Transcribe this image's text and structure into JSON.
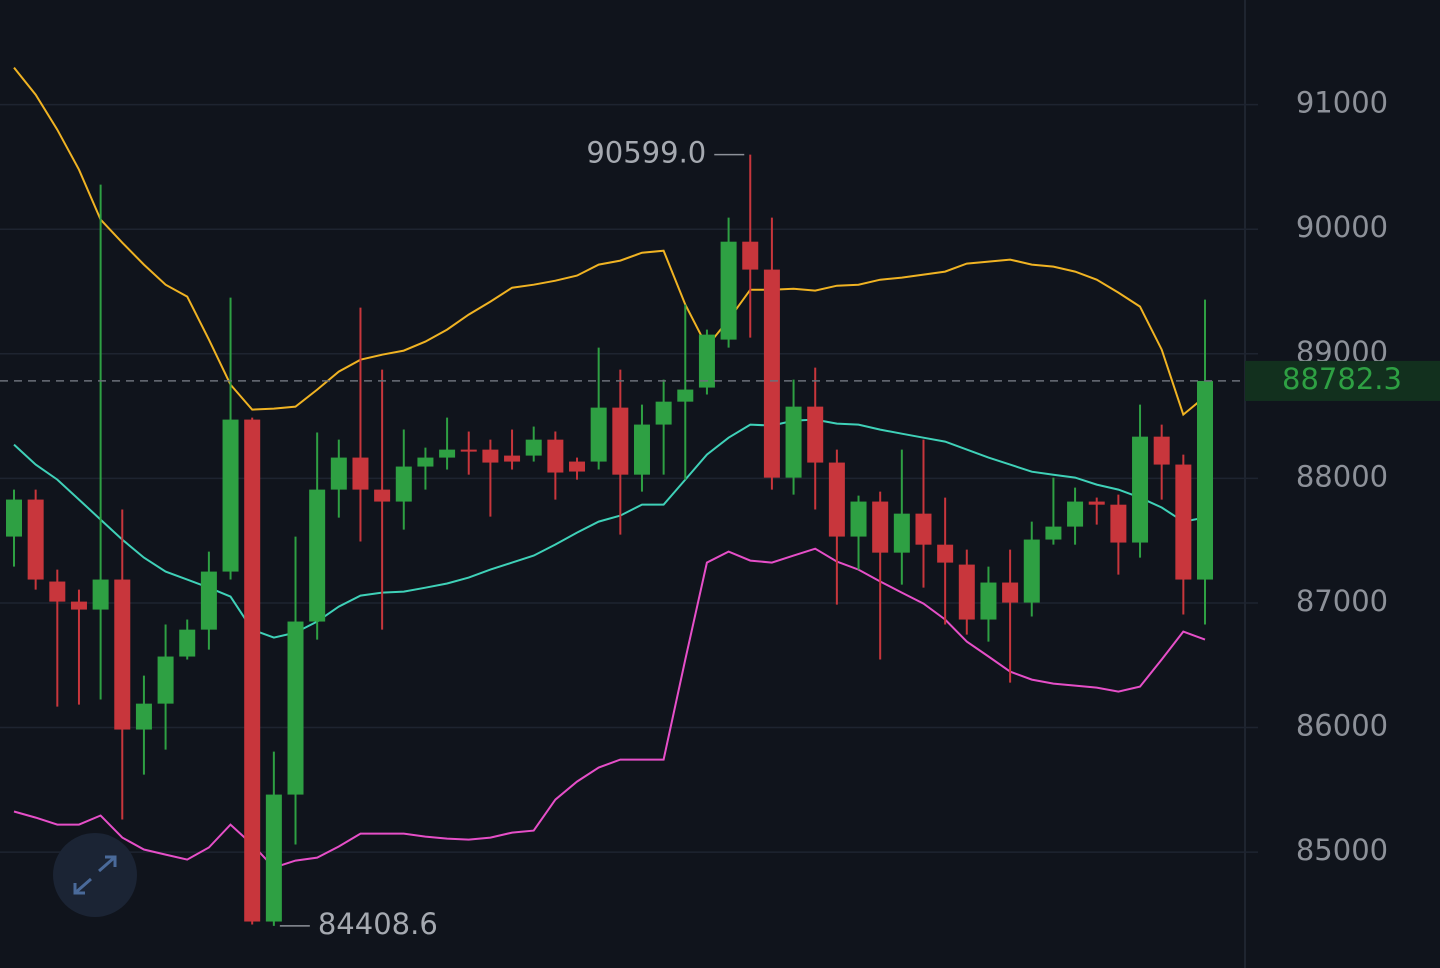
{
  "chart_data": {
    "type": "candlestick",
    "up_color": "#2ea043",
    "down_color": "#c8363c",
    "ylim": [
      84070,
      91840
    ],
    "yticks": [
      85000,
      86000,
      87000,
      88000,
      89000,
      90000,
      91000
    ],
    "grid": true,
    "open": [
      87533,
      87830,
      87172,
      87011,
      86947,
      87188,
      85984,
      86192,
      86570,
      86786,
      87252,
      88472,
      84443,
      85462,
      86851,
      87910,
      88167,
      87910,
      87814,
      88095,
      88167,
      88231,
      88231,
      88183,
      88183,
      88311,
      88135,
      88135,
      88568,
      88030,
      88432,
      88616,
      88729,
      89114,
      89900,
      89676,
      88006,
      88576,
      88127,
      87533,
      87814,
      87404,
      87717,
      87468,
      87308,
      86867,
      87164,
      87003,
      87509,
      87613,
      87814,
      87789,
      87485,
      88335,
      88111,
      87188
    ],
    "high": [
      87910,
      87910,
      87268,
      87107,
      90358,
      87750,
      86417,
      86827,
      86867,
      87412,
      89451,
      88488,
      85807,
      87533,
      88368,
      88311,
      89371,
      88873,
      88392,
      88247,
      88488,
      88376,
      88311,
      88392,
      88416,
      88376,
      88167,
      89050,
      88873,
      88592,
      88793,
      89395,
      89194,
      90093,
      90599,
      90093,
      88793,
      88889,
      88231,
      87862,
      87894,
      88231,
      88311,
      87846,
      87428,
      87292,
      87428,
      87653,
      88006,
      87926,
      87846,
      87870,
      88592,
      88432,
      88191,
      89435
    ],
    "low": [
      87292,
      87107,
      86168,
      86184,
      86225,
      85262,
      85622,
      85823,
      86546,
      86626,
      87188,
      84419,
      84408.6,
      85061,
      86706,
      87685,
      87493,
      86786,
      87589,
      87910,
      88071,
      88030,
      87693,
      88071,
      88135,
      87830,
      87990,
      88071,
      87549,
      87894,
      88030,
      87990,
      88673,
      89050,
      89130,
      87910,
      87870,
      87750,
      86987,
      87268,
      86546,
      87147,
      87123,
      86827,
      86746,
      86690,
      86361,
      86891,
      87468,
      87468,
      87629,
      87228,
      87364,
      87830,
      86907,
      86827
    ],
    "close": [
      87830,
      87188,
      87011,
      86947,
      87188,
      85984,
      86192,
      86570,
      86786,
      87252,
      88472,
      84443,
      85462,
      86851,
      87910,
      88167,
      87910,
      87814,
      88095,
      88167,
      88231,
      88215,
      88127,
      88135,
      88311,
      88047,
      88055,
      88568,
      88030,
      88432,
      88616,
      88713,
      89154,
      89900,
      89676,
      88006,
      88576,
      88127,
      87533,
      87814,
      87404,
      87717,
      87468,
      87324,
      86867,
      87164,
      87003,
      87509,
      87613,
      87814,
      87789,
      87485,
      88335,
      88111,
      87188,
      88782.3
    ],
    "lines": [
      {
        "color": "#f0b323",
        "values": [
          91297,
          91080,
          90799,
          90478,
          90077,
          89892,
          89716,
          89555,
          89459,
          89114,
          88753,
          88552,
          88560,
          88576,
          88713,
          88857,
          88953,
          88993,
          89026,
          89098,
          89194,
          89315,
          89419,
          89531,
          89555,
          89587,
          89628,
          89716,
          89748,
          89812,
          89828,
          89395,
          89058,
          89274,
          89515,
          89515,
          89523,
          89507,
          89547,
          89555,
          89595,
          89612,
          89636,
          89660,
          89724,
          89740,
          89756,
          89716,
          89700,
          89660,
          89595,
          89491,
          89379,
          89034,
          88512,
          88656
        ]
      },
      {
        "color": "#3fd1b8",
        "values": [
          88271,
          88111,
          87990,
          87830,
          87669,
          87509,
          87364,
          87252,
          87188,
          87123,
          87051,
          86786,
          86722,
          86762,
          86851,
          86971,
          87059,
          87083,
          87091,
          87123,
          87156,
          87204,
          87268,
          87324,
          87380,
          87469,
          87565,
          87653,
          87701,
          87790,
          87790,
          87990,
          88191,
          88327,
          88432,
          88424,
          88464,
          88472,
          88440,
          88432,
          88392,
          88359,
          88327,
          88295,
          88231,
          88167,
          88111,
          88054,
          88030,
          88006,
          87950,
          87910,
          87846,
          87766,
          87653,
          87685
        ]
      },
      {
        "color": "#e64fc8",
        "values": [
          85326,
          85277,
          85221,
          85221,
          85294,
          85117,
          85021,
          84980,
          84940,
          85037,
          85221,
          85061,
          84876,
          84932,
          84956,
          85045,
          85149,
          85149,
          85149,
          85125,
          85109,
          85101,
          85117,
          85157,
          85173,
          85422,
          85566,
          85679,
          85743,
          85743,
          85743,
          86546,
          87324,
          87412,
          87340,
          87324,
          87380,
          87436,
          87332,
          87268,
          87172,
          87083,
          86995,
          86867,
          86690,
          86570,
          86449,
          86385,
          86353,
          86337,
          86321,
          86289,
          86329,
          86546,
          86770,
          86706
        ]
      }
    ],
    "annotations": [
      {
        "value": 90599,
        "label": "90599.0"
      },
      {
        "value": 84408.6,
        "label": "84408.6"
      }
    ]
  }
}
